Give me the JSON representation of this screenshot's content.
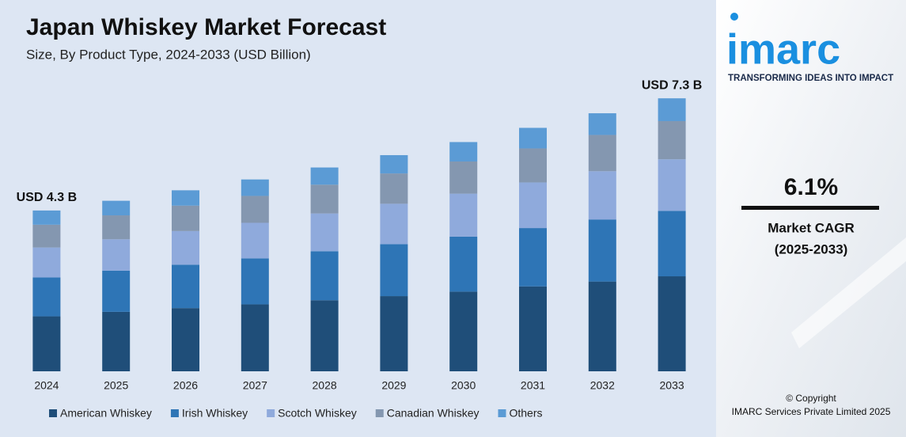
{
  "chart_data": {
    "type": "stacked_bar",
    "title": "Japan Whiskey Market Forecast",
    "subtitle": "Size, By Product Type, 2024-2033 (USD Billion)",
    "categories": [
      "2024",
      "2025",
      "2026",
      "2027",
      "2028",
      "2029",
      "2030",
      "2031",
      "2032",
      "2033"
    ],
    "series": [
      {
        "name": "American Whiskey",
        "color": "#1f4e79",
        "values": [
          1.47,
          1.59,
          1.69,
          1.79,
          1.9,
          2.01,
          2.13,
          2.27,
          2.4,
          2.54
        ]
      },
      {
        "name": "Irish Whiskey",
        "color": "#2e75b6",
        "values": [
          1.04,
          1.1,
          1.16,
          1.23,
          1.31,
          1.39,
          1.47,
          1.56,
          1.66,
          1.75
        ]
      },
      {
        "name": "Scotch Whiskey",
        "color": "#8faadc",
        "values": [
          0.8,
          0.84,
          0.9,
          0.95,
          1.01,
          1.08,
          1.15,
          1.22,
          1.29,
          1.38
        ]
      },
      {
        "name": "Canadian Whiskey",
        "color": "#8497b0",
        "values": [
          0.61,
          0.64,
          0.68,
          0.72,
          0.77,
          0.81,
          0.86,
          0.91,
          0.97,
          1.02
        ]
      },
      {
        "name": "Others",
        "color": "#5b9bd5",
        "values": [
          0.38,
          0.39,
          0.41,
          0.44,
          0.46,
          0.49,
          0.52,
          0.55,
          0.58,
          0.61
        ]
      }
    ],
    "ylim": [
      0,
      7.6
    ],
    "annotations": [
      {
        "text": "USD 4.3 B",
        "category": "2024"
      },
      {
        "text": "USD 7.3 B",
        "category": "2033"
      }
    ],
    "legend": "bottom"
  },
  "sidebar": {
    "logo": "imarc",
    "tagline": "TRANSFORMING IDEAS INTO IMPACT",
    "cagr": "6.1%",
    "cagr_label": "Market CAGR",
    "cagr_period": "(2025-2033)",
    "copyright": "© Copyright",
    "copyright_holder": "IMARC Services Private Limited 2025"
  }
}
